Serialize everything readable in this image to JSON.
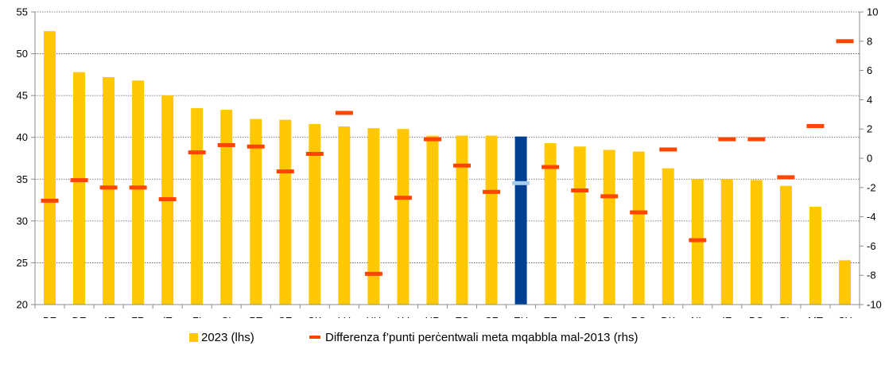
{
  "chart_data": {
    "type": "bar",
    "categories": [
      "BE",
      "DE",
      "AT",
      "FR",
      "IT",
      "FI",
      "SI",
      "PT",
      "SE",
      "SK",
      "LU",
      "HU",
      "LV",
      "HR",
      "ES",
      "CZ",
      "EU",
      "EE",
      "LT",
      "EL",
      "RO",
      "DK",
      "NL",
      "IE",
      "BG",
      "PL",
      "MT",
      "CY"
    ],
    "series": [
      {
        "name": "2023 (lhs)",
        "axis": "left",
        "type": "bar",
        "color": "#FFC800",
        "values": [
          52.7,
          47.8,
          47.2,
          46.8,
          45.0,
          43.5,
          43.3,
          42.2,
          42.1,
          41.6,
          41.3,
          41.1,
          41.0,
          40.2,
          40.2,
          40.2,
          40.1,
          39.3,
          38.9,
          38.5,
          38.3,
          36.3,
          35.0,
          35.0,
          34.9,
          34.2,
          31.7,
          25.3
        ]
      },
      {
        "name": "Differenza f’punti perċentwali meta mqabbla mal-2013 (rhs)",
        "axis": "right",
        "type": "marker",
        "color": "#FF4500",
        "values": [
          -2.9,
          -1.5,
          -2.0,
          -2.0,
          -2.8,
          0.4,
          0.9,
          0.8,
          -0.9,
          0.3,
          3.1,
          -7.9,
          -2.7,
          1.3,
          -0.5,
          -2.3,
          -1.7,
          -0.6,
          -2.2,
          -2.6,
          -3.7,
          0.6,
          -5.6,
          1.3,
          1.3,
          -1.3,
          2.2,
          8.0
        ]
      }
    ],
    "highlight": {
      "category": "EU",
      "bar_color": "#003F91",
      "marker_color": "#A8CDEB"
    },
    "yleft": {
      "lim": [
        20,
        55
      ],
      "ticks": [
        20,
        25,
        30,
        35,
        40,
        45,
        50,
        55
      ]
    },
    "yright": {
      "lim": [
        -10,
        10
      ],
      "ticks": [
        -10,
        -8,
        -6,
        -4,
        -2,
        0,
        2,
        4,
        6,
        8,
        10
      ]
    },
    "grid": true,
    "legend": "bottom-center",
    "title": "",
    "xlabel": "",
    "ylabel": ""
  }
}
